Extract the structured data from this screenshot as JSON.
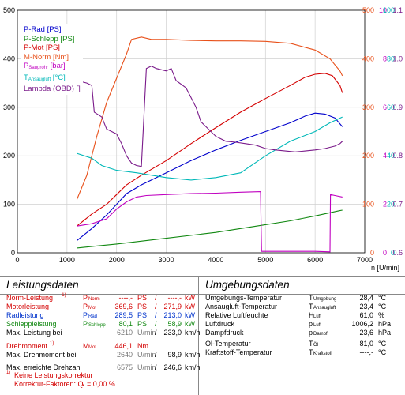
{
  "chart_data": {
    "type": "line",
    "xlabel": "n [U/min]",
    "xlim": [
      0,
      7000
    ],
    "xticks": [
      0,
      1000,
      2000,
      3000,
      4000,
      5000,
      6000,
      7000
    ],
    "ylim_left": [
      0,
      500
    ],
    "yticks_left": [
      0,
      100,
      200,
      300,
      400,
      500
    ],
    "right_axes": [
      {
        "name": "M-Norm [Nm]",
        "color": "#e8501a",
        "ticks": [
          "0",
          "100",
          "200",
          "300",
          "400",
          "500"
        ]
      },
      {
        "name": "Saugrohr [bar]",
        "color": "#c000c0",
        "ticks": [
          "0",
          "2",
          "4",
          "6",
          "8",
          "10"
        ]
      },
      {
        "name": "Ansaugluft [°C]",
        "color": "#00b8b8",
        "ticks": [
          "0",
          "20",
          "40",
          "60",
          "80",
          "100"
        ]
      },
      {
        "name": "Lambda (OBD) []",
        "color": "#7a1a8a",
        "ticks": [
          "0.6",
          "0.7",
          "0.8",
          "0.9",
          "1.0",
          "1.1"
        ]
      }
    ],
    "legend": [
      {
        "label": "P-Rad [PS]",
        "color": "#0000cc"
      },
      {
        "label": "P-Schlepp [PS]",
        "color": "#118811"
      },
      {
        "label": "P-Mot [PS]",
        "color": "#d40000"
      },
      {
        "label": "M-Norm [Nm]",
        "color": "#e8501a"
      },
      {
        "label": "P",
        "sub": "Saugrohr",
        "after": " [bar]",
        "color": "#c000c0"
      },
      {
        "label": "T",
        "sub": "Ansaugluft",
        "after": " [°C]",
        "color": "#00b8b8"
      },
      {
        "label": "Lambda (OBD) []",
        "color": "#7a1a8a"
      }
    ],
    "series": [
      {
        "name": "M-Norm [Nm]",
        "color": "#e8501a",
        "points": [
          [
            1200,
            110
          ],
          [
            1400,
            160
          ],
          [
            1600,
            240
          ],
          [
            1800,
            310
          ],
          [
            2000,
            360
          ],
          [
            2200,
            410
          ],
          [
            2300,
            440
          ],
          [
            2500,
            445
          ],
          [
            2700,
            440
          ],
          [
            3000,
            440
          ],
          [
            3500,
            438
          ],
          [
            4000,
            437
          ],
          [
            4500,
            437
          ],
          [
            5000,
            436
          ],
          [
            5500,
            432
          ],
          [
            6000,
            418
          ],
          [
            6300,
            400
          ],
          [
            6500,
            375
          ],
          [
            6550,
            365
          ]
        ]
      },
      {
        "name": "P-Mot [PS]",
        "color": "#d40000",
        "points": [
          [
            1200,
            55
          ],
          [
            1500,
            80
          ],
          [
            1800,
            100
          ],
          [
            2000,
            120
          ],
          [
            2200,
            140
          ],
          [
            2500,
            160
          ],
          [
            3000,
            190
          ],
          [
            3500,
            225
          ],
          [
            4000,
            258
          ],
          [
            4500,
            290
          ],
          [
            5000,
            318
          ],
          [
            5500,
            345
          ],
          [
            5800,
            362
          ],
          [
            6000,
            368
          ],
          [
            6200,
            370
          ],
          [
            6350,
            365
          ],
          [
            6500,
            345
          ],
          [
            6550,
            330
          ]
        ]
      },
      {
        "name": "P-Rad [PS]",
        "color": "#0000cc",
        "points": [
          [
            1200,
            25
          ],
          [
            1500,
            50
          ],
          [
            1800,
            78
          ],
          [
            2000,
            100
          ],
          [
            2200,
            122
          ],
          [
            2500,
            140
          ],
          [
            3000,
            165
          ],
          [
            3500,
            190
          ],
          [
            4000,
            212
          ],
          [
            4500,
            232
          ],
          [
            5000,
            250
          ],
          [
            5500,
            268
          ],
          [
            5800,
            282
          ],
          [
            6000,
            288
          ],
          [
            6200,
            286
          ],
          [
            6400,
            278
          ],
          [
            6550,
            260
          ]
        ]
      },
      {
        "name": "P-Schlepp [PS]",
        "color": "#118811",
        "points": [
          [
            1200,
            10
          ],
          [
            2000,
            18
          ],
          [
            3000,
            30
          ],
          [
            4000,
            42
          ],
          [
            5000,
            58
          ],
          [
            5500,
            66
          ],
          [
            6000,
            76
          ],
          [
            6500,
            87
          ],
          [
            6550,
            88
          ]
        ]
      },
      {
        "name": "Saugrohr [bar]",
        "color": "#c000c0",
        "points": [
          [
            1200,
            55
          ],
          [
            1500,
            60
          ],
          [
            1800,
            70
          ],
          [
            2000,
            90
          ],
          [
            2200,
            105
          ],
          [
            2400,
            115
          ],
          [
            2600,
            118
          ],
          [
            3000,
            120
          ],
          [
            3500,
            122
          ],
          [
            4000,
            123
          ],
          [
            4500,
            125
          ],
          [
            4900,
            126
          ],
          [
            4920,
            3
          ],
          [
            6000,
            3
          ],
          [
            6300,
            2
          ],
          [
            6310,
            120
          ],
          [
            6400,
            118
          ],
          [
            6550,
            115
          ]
        ]
      },
      {
        "name": "Ansaugluft [°C]",
        "color": "#00b8b8",
        "points": [
          [
            1200,
            205
          ],
          [
            1500,
            195
          ],
          [
            1700,
            180
          ],
          [
            2000,
            170
          ],
          [
            2400,
            165
          ],
          [
            3000,
            155
          ],
          [
            3500,
            150
          ],
          [
            4000,
            155
          ],
          [
            4500,
            165
          ],
          [
            5000,
            200
          ],
          [
            5500,
            230
          ],
          [
            6000,
            250
          ],
          [
            6300,
            268
          ],
          [
            6550,
            280
          ]
        ]
      },
      {
        "name": "Lambda (OBD) []",
        "color": "#7a1a8a",
        "points": [
          [
            1200,
            355
          ],
          [
            1400,
            350
          ],
          [
            1500,
            345
          ],
          [
            1550,
            290
          ],
          [
            1700,
            280
          ],
          [
            1800,
            255
          ],
          [
            1900,
            250
          ],
          [
            2000,
            245
          ],
          [
            2100,
            225
          ],
          [
            2200,
            200
          ],
          [
            2300,
            185
          ],
          [
            2400,
            180
          ],
          [
            2500,
            178
          ],
          [
            2600,
            380
          ],
          [
            2700,
            385
          ],
          [
            2800,
            380
          ],
          [
            3000,
            375
          ],
          [
            3100,
            380
          ],
          [
            3200,
            355
          ],
          [
            3400,
            340
          ],
          [
            3500,
            320
          ],
          [
            3600,
            300
          ],
          [
            3700,
            270
          ],
          [
            3800,
            260
          ],
          [
            4000,
            240
          ],
          [
            4200,
            230
          ],
          [
            4400,
            228
          ],
          [
            4600,
            225
          ],
          [
            4800,
            222
          ],
          [
            5000,
            215
          ],
          [
            5200,
            212
          ],
          [
            5400,
            210
          ],
          [
            5600,
            208
          ],
          [
            5800,
            210
          ],
          [
            6000,
            212
          ],
          [
            6200,
            215
          ],
          [
            6400,
            220
          ],
          [
            6500,
            225
          ],
          [
            6550,
            230
          ]
        ]
      }
    ]
  },
  "leistung": {
    "title": "Leistungsdaten",
    "rows": [
      {
        "label": "Norm-Leistung",
        "label_sup": "1)",
        "sym": "P",
        "sym_sub": "Norm",
        "v1": "----,-",
        "u1": "PS",
        "sep": "/",
        "v2": "----,-",
        "u2": "kW",
        "color": "red"
      },
      {
        "label": "Motorleistung",
        "sym": "P",
        "sym_sub": "Mot",
        "v1": "369,6",
        "u1": "PS",
        "sep": "/",
        "v2": "271,9",
        "u2": "kW",
        "color": "red"
      },
      {
        "label": "Radleistung",
        "sym": "P",
        "sym_sub": "Rad",
        "v1": "289,5",
        "u1": "PS",
        "sep": "/",
        "v2": "213,0",
        "u2": "kW",
        "color": "blue"
      },
      {
        "label": "Schleppleistung",
        "sym": "P",
        "sym_sub": "Schlepp",
        "v1": "80,1",
        "u1": "PS",
        "sep": "/",
        "v2": "58,9",
        "u2": "kW",
        "color": "green"
      },
      {
        "label": "Max. Leistung bei",
        "sym": "",
        "sym_sub": "",
        "v1": "6210",
        "u1": "U/min",
        "sep": "/",
        "v2": "233,0",
        "u2": "km/h",
        "color": "plain"
      },
      {
        "label": "Drehmoment",
        "label_sup": "1)",
        "sym": "M",
        "sym_sub": "Mot",
        "v1": "446,1",
        "u1": "Nm",
        "sep": "",
        "v2": "",
        "u2": "",
        "color": "red"
      },
      {
        "label": "Max. Drehmoment bei",
        "sym": "",
        "sym_sub": "",
        "v1": "2640",
        "u1": "U/min",
        "sep": "/",
        "v2": "98,9",
        "u2": "km/h",
        "color": "plain"
      },
      {
        "label": "Max. erreichte Drehzahl",
        "sym": "",
        "sym_sub": "",
        "v1": "6575",
        "u1": "U/min",
        "sep": "/",
        "v2": "246,6",
        "u2": "km/h",
        "color": "plain"
      }
    ],
    "footnote1": "Keine Leistungskorrektur",
    "footnote1_sup": "1)",
    "footnote2": "Korrektur-Faktoren: Q",
    "footnote2_sub": "v",
    "footnote2_val": "=   0,00 %"
  },
  "umgebung": {
    "title": "Umgebungsdaten",
    "rows": [
      {
        "label": "Umgebungs-Temperatur",
        "sym": "T",
        "sym_sub": "Umgebung",
        "val": "28,4",
        "unit": "°C"
      },
      {
        "label": "Ansaugluft-Temperatur",
        "sym": "T",
        "sym_sub": "Ansaugluft",
        "val": "23,4",
        "unit": "°C"
      },
      {
        "label": "Relative Luftfeuchte",
        "sym": "H",
        "sym_sub": "Luft",
        "val": "61,0",
        "unit": "%"
      },
      {
        "label": "Luftdruck",
        "sym": "p",
        "sym_sub": "Luft",
        "val": "1006,2",
        "unit": "hPa"
      },
      {
        "label": "Dampfdruck",
        "sym": "p",
        "sym_sub": "Dampf",
        "val": "23,6",
        "unit": "hPa"
      },
      {
        "label": "Öl-Temperatur",
        "sym": "T",
        "sym_sub": "Öl",
        "val": "81,0",
        "unit": "°C"
      },
      {
        "label": "Kraftstoff-Temperatur",
        "sym": "T",
        "sym_sub": "Kraftstoff",
        "val": "----,-",
        "unit": "°C"
      }
    ]
  }
}
